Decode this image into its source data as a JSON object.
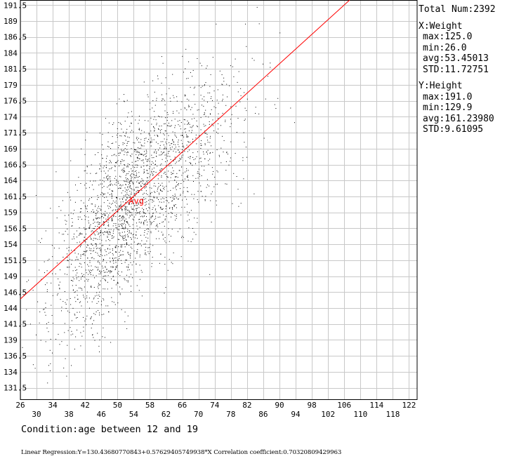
{
  "stats": {
    "total": "Total Num:2392",
    "x_title": "X:Weight",
    "x_max": "max:125.0",
    "x_min": "min:26.0",
    "x_avg": "avg:53.45013",
    "x_std": "STD:11.72751",
    "y_title": "Y:Height",
    "y_max": "max:191.0",
    "y_min": "min:129.9",
    "y_avg": "avg:161.23980",
    "y_std": "STD:9.61095"
  },
  "condition": "Condition:age between 12 and 19",
  "regression_text": "Linear Regression:Y=130.43680770843+0.57629405749938*X Correlation coefficient:0.70320809429963",
  "chart_data": {
    "type": "scatter",
    "title": "",
    "xlabel": "Weight",
    "ylabel": "Height",
    "xlim": [
      26,
      124
    ],
    "ylim": [
      130,
      192
    ],
    "x_ticks_row1": [
      26,
      34,
      42,
      50,
      58,
      66,
      74,
      82,
      90,
      98,
      106,
      114,
      122
    ],
    "x_ticks_row2": [
      30,
      38,
      46,
      54,
      62,
      70,
      78,
      86,
      94,
      102,
      110,
      118
    ],
    "y_ticks": [
      191.5,
      189,
      186.5,
      184,
      181.5,
      179,
      176.5,
      174,
      171.5,
      169,
      166.5,
      164,
      161.5,
      159,
      156.5,
      154,
      151.5,
      149,
      146.5,
      144,
      141.5,
      139,
      136.5,
      134,
      131.5
    ],
    "grid": true,
    "point_count": 2392,
    "x_stats": {
      "max": 125.0,
      "min": 26.0,
      "avg": 53.45013,
      "std": 11.72751
    },
    "y_stats": {
      "max": 191.0,
      "min": 129.9,
      "avg": 161.2398,
      "std": 9.61095
    },
    "regression": {
      "intercept": 130.43680770843,
      "slope": 0.57629405749938,
      "r": 0.70320809429963,
      "color": "#ff0000"
    },
    "avg_marker": {
      "label": "Avg",
      "x": 53.45013,
      "y": 161.2398,
      "color": "#ff0000"
    }
  }
}
